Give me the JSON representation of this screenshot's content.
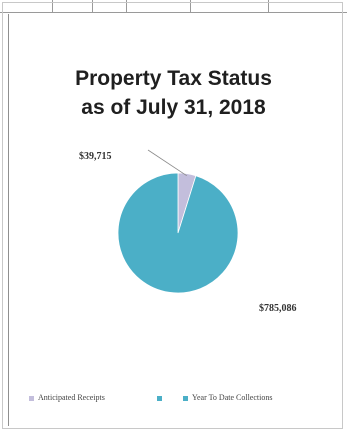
{
  "colors": {
    "collections": "#4bafc7",
    "anticipated": "#c3bedc"
  },
  "chart_data": {
    "type": "pie",
    "title_lines": [
      "Property Tax Status",
      "as of July 31, 2018"
    ],
    "slices": [
      {
        "name": "Anticipated Receipts",
        "value": 39715,
        "label": "$39,715",
        "color": "#c3bedc"
      },
      {
        "name": "Year To Date Collections",
        "value": 785086,
        "label": "$785,086",
        "color": "#4bafc7"
      }
    ],
    "legend": {
      "position": "bottom",
      "entries": [
        "Anticipated Receipts",
        "Year To Date Collections"
      ]
    }
  }
}
